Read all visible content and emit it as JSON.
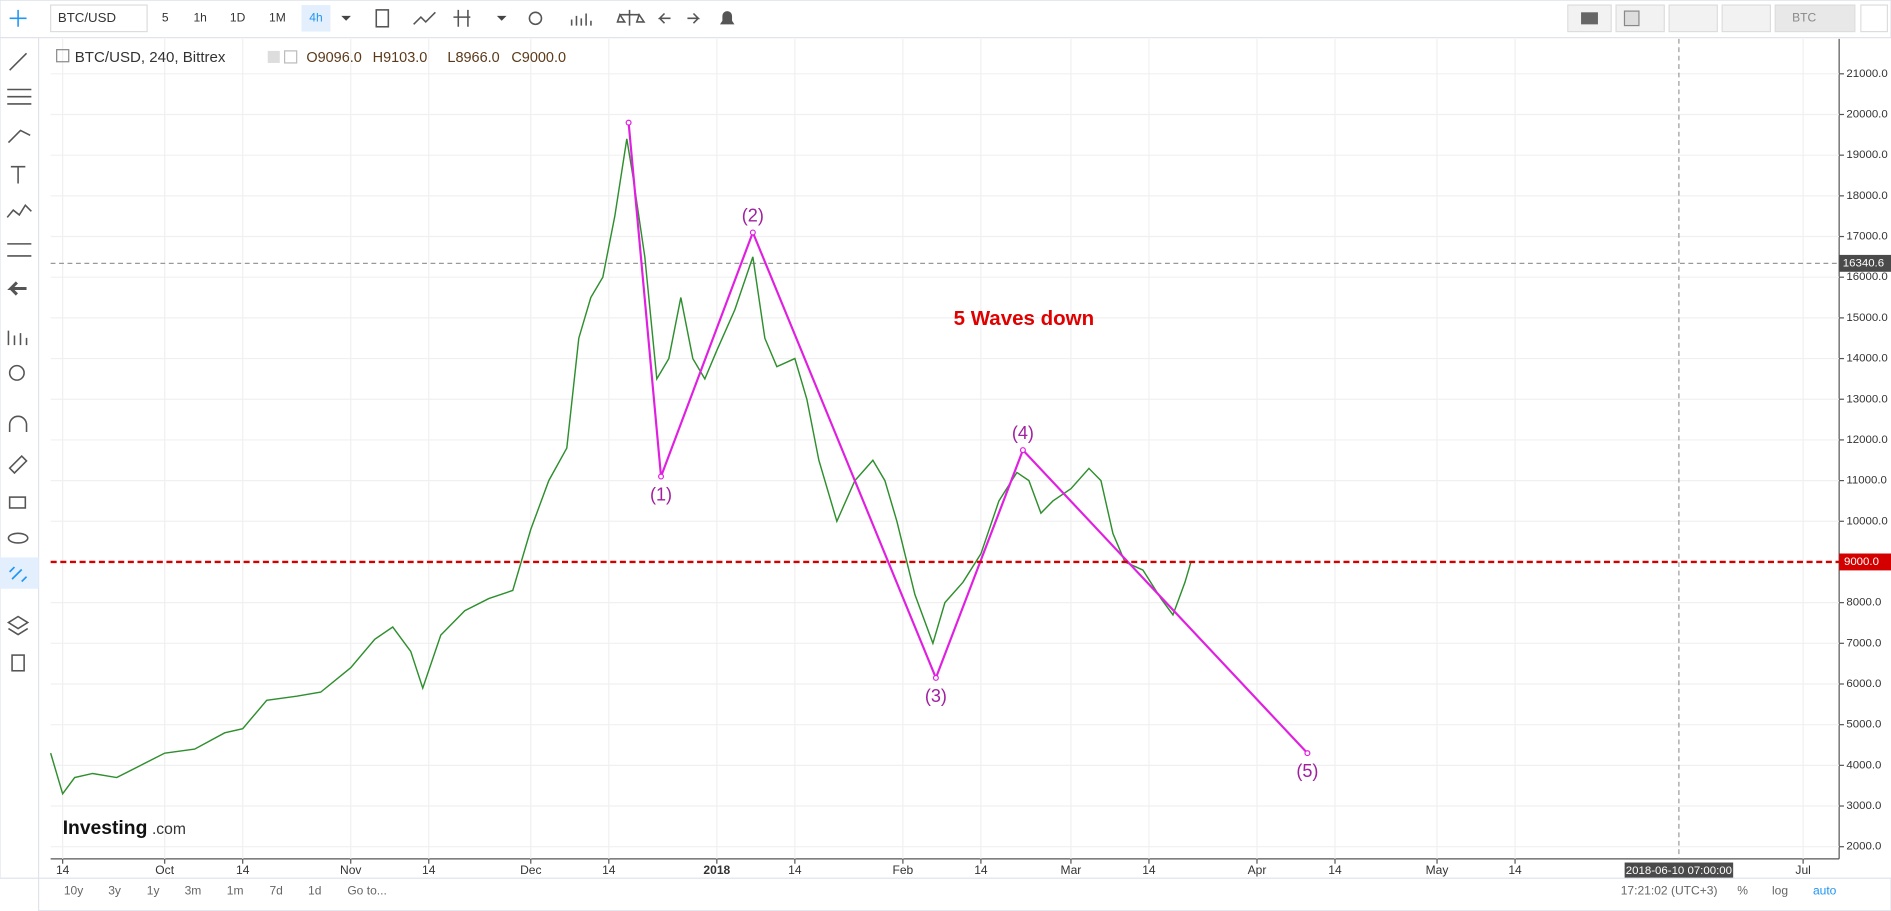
{
  "toolbar": {
    "symbol": "BTC/USD",
    "intervals": [
      "5",
      "1h",
      "1D",
      "1M",
      "4h"
    ],
    "active_interval": "4h",
    "symbol_right": "BTC"
  },
  "chart_data": {
    "type": "line",
    "title": "BTC/USD, 240, Bittrex",
    "ohlc": [
      "O9096.0",
      "H9103.0",
      "L8966.0",
      "C9000.0"
    ],
    "annotation": "5 Waves down",
    "watermark": {
      "brand": "Investing",
      "suffix": ".com"
    },
    "series": [
      {
        "color": "#2f8f2f",
        "x": [
          11,
          13,
          15,
          18,
          22,
          26,
          30,
          35,
          40,
          43,
          47,
          52,
          56,
          61,
          65,
          68,
          71,
          73,
          76,
          80,
          84,
          88,
          91,
          94,
          97,
          99,
          101,
          103,
          105,
          107,
          108,
          110,
          112,
          114,
          116,
          118,
          120,
          122,
          125,
          128,
          130,
          132,
          135,
          137,
          139,
          142,
          145,
          148,
          150,
          152,
          155,
          158,
          160,
          163,
          166,
          169,
          172,
          174,
          176,
          178,
          181,
          184,
          186,
          188,
          190,
          193,
          196,
          198,
          200,
          201
        ],
        "values": [
          4300,
          3300,
          3700,
          3800,
          3700,
          4000,
          4300,
          4400,
          4800,
          4900,
          5600,
          5700,
          5800,
          6400,
          7100,
          7400,
          6800,
          5900,
          7200,
          7800,
          8100,
          8300,
          9800,
          11000,
          11800,
          14500,
          15500,
          16000,
          17500,
          19400,
          18500,
          16500,
          13500,
          14000,
          15500,
          14000,
          13500,
          14200,
          15200,
          16500,
          14500,
          13800,
          14000,
          13000,
          11500,
          10000,
          11000,
          11500,
          11000,
          10000,
          8200,
          7000,
          8000,
          8500,
          9200,
          10500,
          11200,
          11000,
          10200,
          10500,
          10800,
          11300,
          11000,
          9700,
          9000,
          8800,
          8100,
          7700,
          8500,
          9000
        ]
      },
      {
        "color": "#e020e0",
        "x": [
          107.3,
          112.7,
          128,
          158.5,
          173,
          220.4
        ],
        "values": [
          19800,
          11100,
          17100,
          6150,
          11750,
          4300
        ],
        "labels": [
          null,
          "(1)",
          "(2)",
          "(3)",
          "(4)",
          "(5)"
        ]
      }
    ],
    "xlim": [
      11,
      309
    ],
    "xticks": [
      {
        "value": 13,
        "label": "14"
      },
      {
        "value": 30,
        "label": "Oct"
      },
      {
        "value": 43,
        "label": "14"
      },
      {
        "value": 61,
        "label": "Nov"
      },
      {
        "value": 74,
        "label": "14"
      },
      {
        "value": 91,
        "label": "Dec"
      },
      {
        "value": 104,
        "label": "14"
      },
      {
        "value": 122,
        "label": "2018"
      },
      {
        "value": 135,
        "label": "14"
      },
      {
        "value": 153,
        "label": "Feb"
      },
      {
        "value": 166,
        "label": "14"
      },
      {
        "value": 181,
        "label": "Mar"
      },
      {
        "value": 194,
        "label": "14"
      },
      {
        "value": 212,
        "label": "Apr"
      },
      {
        "value": 225,
        "label": "14"
      },
      {
        "value": 242,
        "label": "May"
      },
      {
        "value": 255,
        "label": "14"
      },
      {
        "value": 303,
        "label": "Jul"
      }
    ],
    "ylim": [
      1700,
      21860
    ],
    "yticks": [
      {
        "value": 2000,
        "label": "2000.0"
      },
      {
        "value": 3000,
        "label": "3000.0"
      },
      {
        "value": 4000,
        "label": "4000.0"
      },
      {
        "value": 5000,
        "label": "5000.0"
      },
      {
        "value": 6000,
        "label": "6000.0"
      },
      {
        "value": 7000,
        "label": "7000.0"
      },
      {
        "value": 8000,
        "label": "8000.0"
      },
      {
        "value": 10000,
        "label": "10000.0"
      },
      {
        "value": 11000,
        "label": "11000.0"
      },
      {
        "value": 12000,
        "label": "12000.0"
      },
      {
        "value": 13000,
        "label": "13000.0"
      },
      {
        "value": 14000,
        "label": "14000.0"
      },
      {
        "value": 15000,
        "label": "15000.0"
      },
      {
        "value": 16000,
        "label": "16000.0"
      },
      {
        "value": 17000,
        "label": "17000.0"
      },
      {
        "value": 18000,
        "label": "18000.0"
      },
      {
        "value": 19000,
        "label": "19000.0"
      },
      {
        "value": 20000,
        "label": "20000.0"
      },
      {
        "value": 21000,
        "label": "21000.0"
      }
    ],
    "grid": true,
    "price_line": {
      "value": 9000,
      "label": "9000.0",
      "color": "#d40000"
    },
    "crosshair": {
      "price": {
        "value": 16340.6,
        "label": "16340.6"
      },
      "time": {
        "value": 282.3,
        "label": "2018-06-10 07:00:00"
      }
    }
  },
  "bottom_bar": {
    "ranges": [
      "10y",
      "3y",
      "1y",
      "3m",
      "1m",
      "7d",
      "1d"
    ],
    "goto": "Go to...",
    "clock": "17:21:02 (UTC+3)",
    "options": [
      "%",
      "log",
      "auto"
    ]
  }
}
